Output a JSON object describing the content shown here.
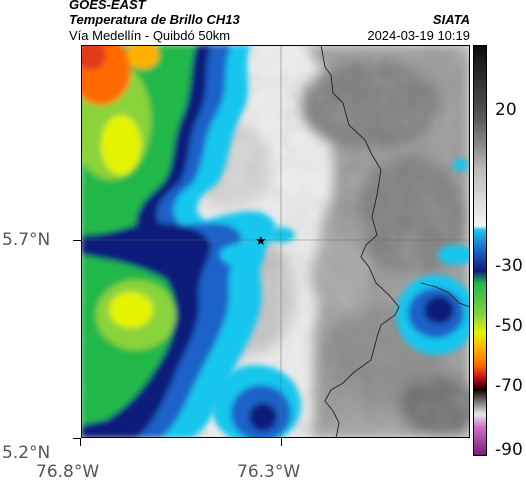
{
  "header": {
    "satellite": "GOES-EAST",
    "product": "Temperatura de Brillo CH13",
    "location": "Vía Medellín - Quibdó 50km",
    "source": "SIATA",
    "timestamp": "2024-03-19 10:19"
  },
  "map": {
    "x_tick_labels": [
      "76.8°W",
      "76.3°W"
    ],
    "y_tick_labels": [
      "5.7°N",
      "5.2°N"
    ],
    "marker_symbol": "★",
    "colors": {
      "deep_blue": "#0b1f7a",
      "blue": "#1e62c9",
      "cyan": "#19c6ee",
      "green": "#22b84a",
      "yellow": "#e4f400",
      "orange": "#ff6a00",
      "cloud_light": "#f2f2f2",
      "cloud_grey": "#8c8c8c"
    }
  },
  "colorbar": {
    "tick_labels": [
      "20",
      "-30",
      "-50",
      "-70",
      "-90"
    ]
  }
}
